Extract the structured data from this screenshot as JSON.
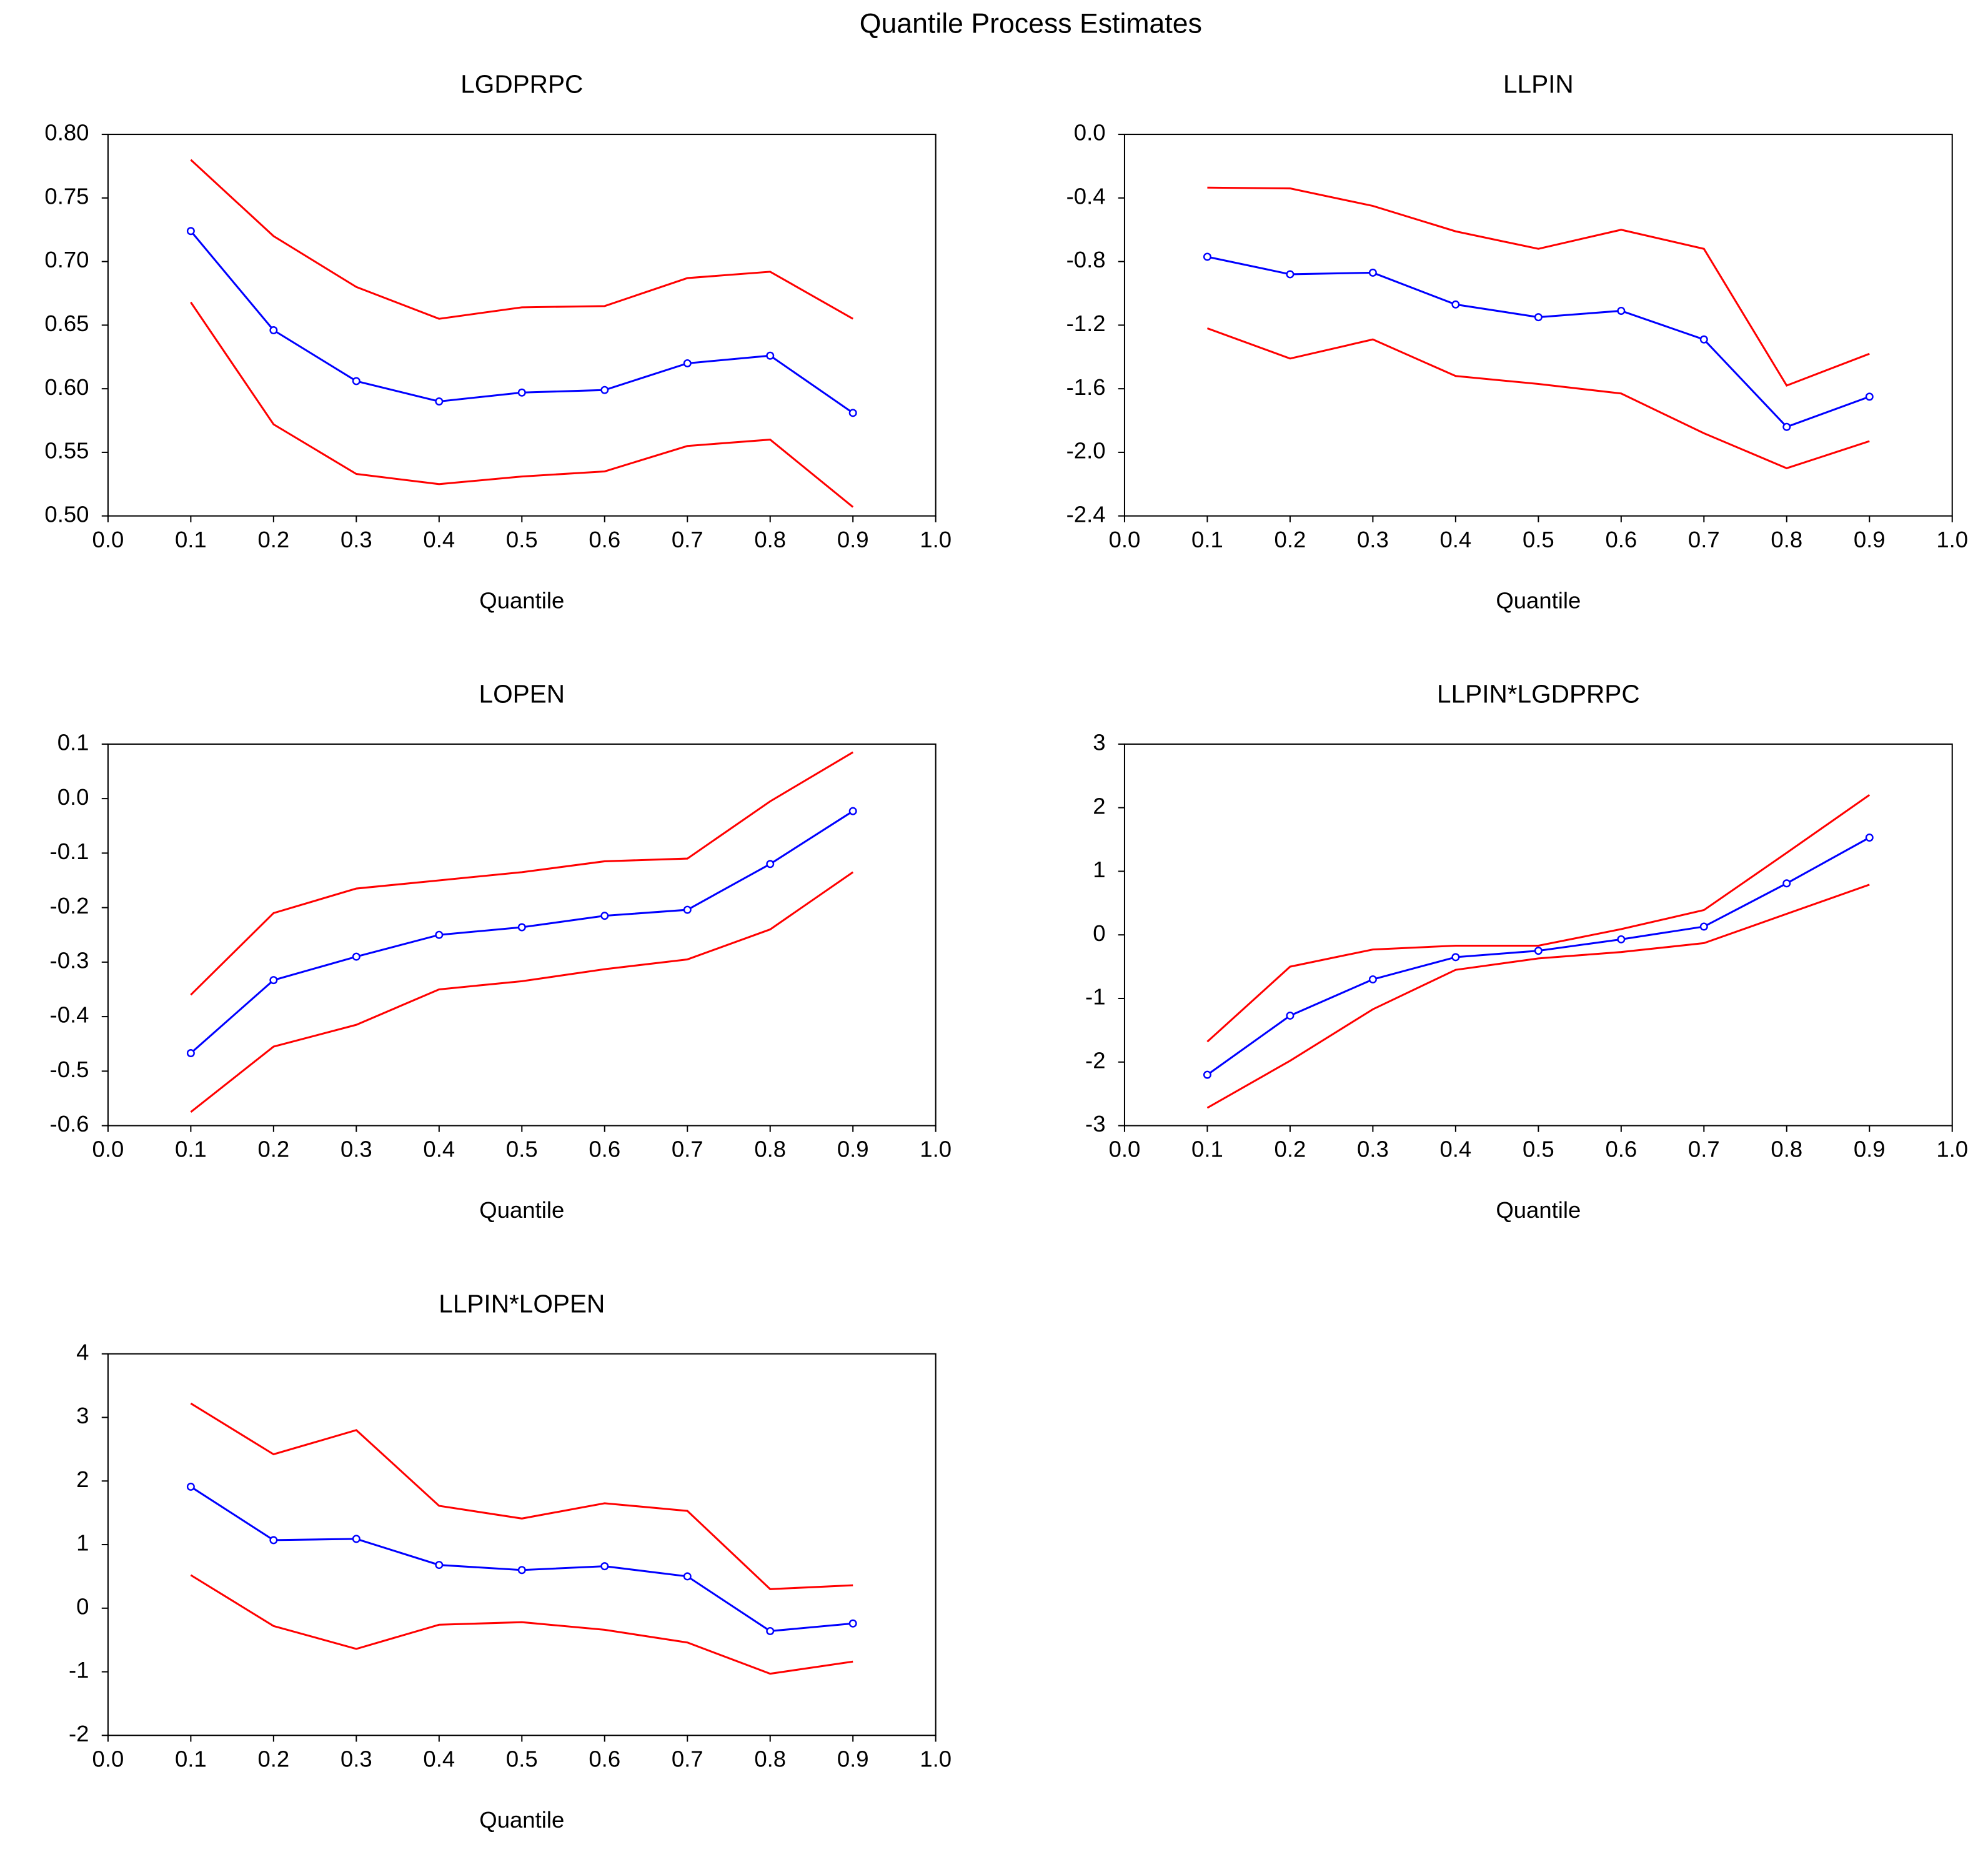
{
  "title": "Quantile Process Estimates",
  "chart_data": [
    {
      "type": "line",
      "title": "LGDPRPC",
      "xlabel": "Quantile",
      "x": [
        0.1,
        0.2,
        0.3,
        0.4,
        0.5,
        0.6,
        0.7,
        0.8,
        0.9
      ],
      "xlim": [
        0,
        1
      ],
      "xticks": [
        {
          "value": 0,
          "label": "0.0"
        },
        0.1,
        0.2,
        0.3,
        0.4,
        0.5,
        0.6,
        0.7,
        0.8,
        0.9,
        {
          "value": 1,
          "label": "1.0"
        }
      ],
      "ylim": [
        0.5,
        0.8
      ],
      "yticks": [
        {
          "value": 0.5,
          "label": "0.50"
        },
        0.55,
        {
          "value": 0.6,
          "label": "0.60"
        },
        0.65,
        {
          "value": 0.7,
          "label": "0.70"
        },
        0.75,
        {
          "value": 0.8,
          "label": "0.80"
        }
      ],
      "series": [
        {
          "color": "#0000ff",
          "marker": true,
          "values": [
            0.724,
            0.646,
            0.606,
            0.59,
            0.597,
            0.599,
            0.62,
            0.626,
            0.581
          ]
        },
        {
          "color": "#ff0000",
          "values": [
            0.78,
            0.72,
            0.68,
            0.655,
            0.664,
            0.665,
            0.687,
            0.692,
            0.655
          ]
        },
        {
          "color": "#ff0000",
          "values": [
            0.668,
            0.572,
            0.533,
            0.525,
            0.531,
            0.535,
            0.555,
            0.56,
            0.507
          ]
        }
      ]
    },
    {
      "type": "line",
      "title": "LLPIN",
      "xlabel": "Quantile",
      "x": [
        0.1,
        0.2,
        0.3,
        0.4,
        0.5,
        0.6,
        0.7,
        0.8,
        0.9
      ],
      "xlim": [
        0,
        1
      ],
      "xticks": [
        {
          "value": 0,
          "label": "0.0"
        },
        0.1,
        0.2,
        0.3,
        0.4,
        0.5,
        0.6,
        0.7,
        0.8,
        0.9,
        {
          "value": 1,
          "label": "1.0"
        }
      ],
      "ylim": [
        -2.4,
        0
      ],
      "yticks": [
        -2.4,
        {
          "value": -2,
          "label": "-2.0"
        },
        -1.6,
        -1.2,
        -0.8,
        -0.4,
        {
          "value": 0,
          "label": "0.0"
        }
      ],
      "series": [
        {
          "color": "#0000ff",
          "marker": true,
          "values": [
            -0.77,
            -0.88,
            -0.87,
            -1.07,
            -1.15,
            -1.11,
            -1.29,
            -1.84,
            -1.65
          ]
        },
        {
          "color": "#ff0000",
          "values": [
            -0.335,
            -0.34,
            -0.45,
            -0.61,
            -0.72,
            -0.6,
            -0.72,
            -1.58,
            -1.38
          ]
        },
        {
          "color": "#ff0000",
          "values": [
            -1.22,
            -1.41,
            -1.29,
            -1.52,
            -1.57,
            -1.63,
            -1.88,
            -2.1,
            -1.93
          ]
        }
      ]
    },
    {
      "type": "line",
      "title": "LOPEN",
      "xlabel": "Quantile",
      "x": [
        0.1,
        0.2,
        0.3,
        0.4,
        0.5,
        0.6,
        0.7,
        0.8,
        0.9
      ],
      "xlim": [
        0,
        1
      ],
      "xticks": [
        {
          "value": 0,
          "label": "0.0"
        },
        0.1,
        0.2,
        0.3,
        0.4,
        0.5,
        0.6,
        0.7,
        0.8,
        0.9,
        {
          "value": 1,
          "label": "1.0"
        }
      ],
      "ylim": [
        -0.6,
        0.1
      ],
      "yticks": [
        -0.6,
        -0.5,
        -0.4,
        -0.3,
        -0.2,
        -0.1,
        {
          "value": 0,
          "label": "0.0"
        },
        0.1
      ],
      "series": [
        {
          "color": "#0000ff",
          "marker": true,
          "values": [
            -0.467,
            -0.333,
            -0.29,
            -0.25,
            -0.236,
            -0.215,
            -0.204,
            -0.12,
            -0.023
          ]
        },
        {
          "color": "#ff0000",
          "values": [
            -0.36,
            -0.21,
            -0.165,
            -0.15,
            -0.135,
            -0.115,
            -0.11,
            -0.005,
            0.085
          ]
        },
        {
          "color": "#ff0000",
          "values": [
            -0.575,
            -0.455,
            -0.415,
            -0.35,
            -0.335,
            -0.313,
            -0.295,
            -0.24,
            -0.135
          ]
        }
      ]
    },
    {
      "type": "line",
      "title": "LLPIN*LGDPRPC",
      "xlabel": "Quantile",
      "x": [
        0.1,
        0.2,
        0.3,
        0.4,
        0.5,
        0.6,
        0.7,
        0.8,
        0.9
      ],
      "xlim": [
        0,
        1
      ],
      "xticks": [
        {
          "value": 0,
          "label": "0.0"
        },
        0.1,
        0.2,
        0.3,
        0.4,
        0.5,
        0.6,
        0.7,
        0.8,
        0.9,
        {
          "value": 1,
          "label": "1.0"
        }
      ],
      "ylim": [
        -3,
        3
      ],
      "yticks": [
        -3,
        -2,
        -1,
        0,
        1,
        2,
        3
      ],
      "series": [
        {
          "color": "#0000ff",
          "marker": true,
          "values": [
            -2.2,
            -1.27,
            -0.7,
            -0.35,
            -0.25,
            -0.07,
            0.13,
            0.81,
            1.53
          ]
        },
        {
          "color": "#ff0000",
          "values": [
            -1.68,
            -0.5,
            -0.23,
            -0.17,
            -0.17,
            0.09,
            0.39,
            1.29,
            2.2
          ]
        },
        {
          "color": "#ff0000",
          "values": [
            -2.72,
            -1.98,
            -1.17,
            -0.55,
            -0.37,
            -0.27,
            -0.13,
            0.33,
            0.79
          ]
        }
      ]
    },
    {
      "type": "line",
      "title": "LLPIN*LOPEN",
      "xlabel": "Quantile",
      "x": [
        0.1,
        0.2,
        0.3,
        0.4,
        0.5,
        0.6,
        0.7,
        0.8,
        0.9
      ],
      "xlim": [
        0,
        1
      ],
      "xticks": [
        {
          "value": 0,
          "label": "0.0"
        },
        0.1,
        0.2,
        0.3,
        0.4,
        0.5,
        0.6,
        0.7,
        0.8,
        0.9,
        {
          "value": 1,
          "label": "1.0"
        }
      ],
      "ylim": [
        -2,
        4
      ],
      "yticks": [
        -2,
        -1,
        0,
        1,
        2,
        3,
        4
      ],
      "series": [
        {
          "color": "#0000ff",
          "marker": true,
          "values": [
            1.91,
            1.07,
            1.09,
            0.68,
            0.6,
            0.66,
            0.5,
            -0.36,
            -0.24
          ]
        },
        {
          "color": "#ff0000",
          "values": [
            3.22,
            2.42,
            2.8,
            1.61,
            1.41,
            1.65,
            1.53,
            0.3,
            0.36
          ]
        },
        {
          "color": "#ff0000",
          "values": [
            0.52,
            -0.28,
            -0.64,
            -0.26,
            -0.22,
            -0.34,
            -0.54,
            -1.03,
            -0.84
          ]
        }
      ]
    }
  ]
}
